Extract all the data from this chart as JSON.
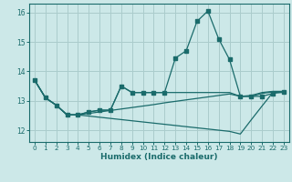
{
  "xlabel": "Humidex (Indice chaleur)",
  "background_color": "#cce8e8",
  "grid_color": "#aacccc",
  "line_color": "#1a6b6b",
  "xlim": [
    -0.5,
    23.5
  ],
  "ylim": [
    11.6,
    16.3
  ],
  "yticks": [
    12,
    13,
    14,
    15,
    16
  ],
  "xticks": [
    0,
    1,
    2,
    3,
    4,
    5,
    6,
    7,
    8,
    9,
    10,
    11,
    12,
    13,
    14,
    15,
    16,
    17,
    18,
    19,
    20,
    21,
    22,
    23
  ],
  "line1_x": [
    0,
    1,
    2,
    3,
    4,
    5,
    6,
    7,
    8,
    9,
    10,
    11,
    12,
    13,
    14,
    15,
    16,
    17,
    18,
    19,
    20,
    21,
    22,
    23
  ],
  "line1_y": [
    13.7,
    13.1,
    12.85,
    12.52,
    12.52,
    12.62,
    12.68,
    12.68,
    13.5,
    13.28,
    13.28,
    13.28,
    13.28,
    14.45,
    14.7,
    15.7,
    16.05,
    15.1,
    14.4,
    13.15,
    13.15,
    13.15,
    13.25,
    13.3
  ],
  "line2_x": [
    0,
    1,
    2,
    3,
    4,
    5,
    6,
    7,
    8,
    9,
    10,
    11,
    12,
    13,
    14,
    15,
    16,
    17,
    18,
    19,
    20,
    21,
    22,
    23
  ],
  "line2_y": [
    13.7,
    13.1,
    12.85,
    12.52,
    12.52,
    12.62,
    12.68,
    12.68,
    13.5,
    13.28,
    13.28,
    13.28,
    13.28,
    13.28,
    13.28,
    13.28,
    13.28,
    13.28,
    13.28,
    13.15,
    13.15,
    13.25,
    13.3,
    13.3
  ],
  "line3_x": [
    0,
    1,
    2,
    3,
    4,
    5,
    6,
    7,
    8,
    9,
    10,
    11,
    12,
    13,
    14,
    15,
    16,
    17,
    18,
    19,
    20,
    21,
    22,
    23
  ],
  "line3_y": [
    13.7,
    13.1,
    12.85,
    12.52,
    12.52,
    12.57,
    12.62,
    12.67,
    12.72,
    12.77,
    12.82,
    12.87,
    12.93,
    12.98,
    13.03,
    13.08,
    13.13,
    13.18,
    13.23,
    13.15,
    13.18,
    13.28,
    13.32,
    13.32
  ],
  "line4_x": [
    0,
    1,
    2,
    3,
    4,
    5,
    6,
    7,
    8,
    9,
    10,
    11,
    12,
    13,
    14,
    15,
    16,
    17,
    18,
    19,
    20,
    21,
    22,
    23
  ],
  "line4_y": [
    13.7,
    13.1,
    12.85,
    12.52,
    12.52,
    12.48,
    12.44,
    12.4,
    12.36,
    12.32,
    12.28,
    12.24,
    12.2,
    12.16,
    12.12,
    12.08,
    12.04,
    12.0,
    11.96,
    11.87,
    12.35,
    12.82,
    13.28,
    13.28
  ]
}
